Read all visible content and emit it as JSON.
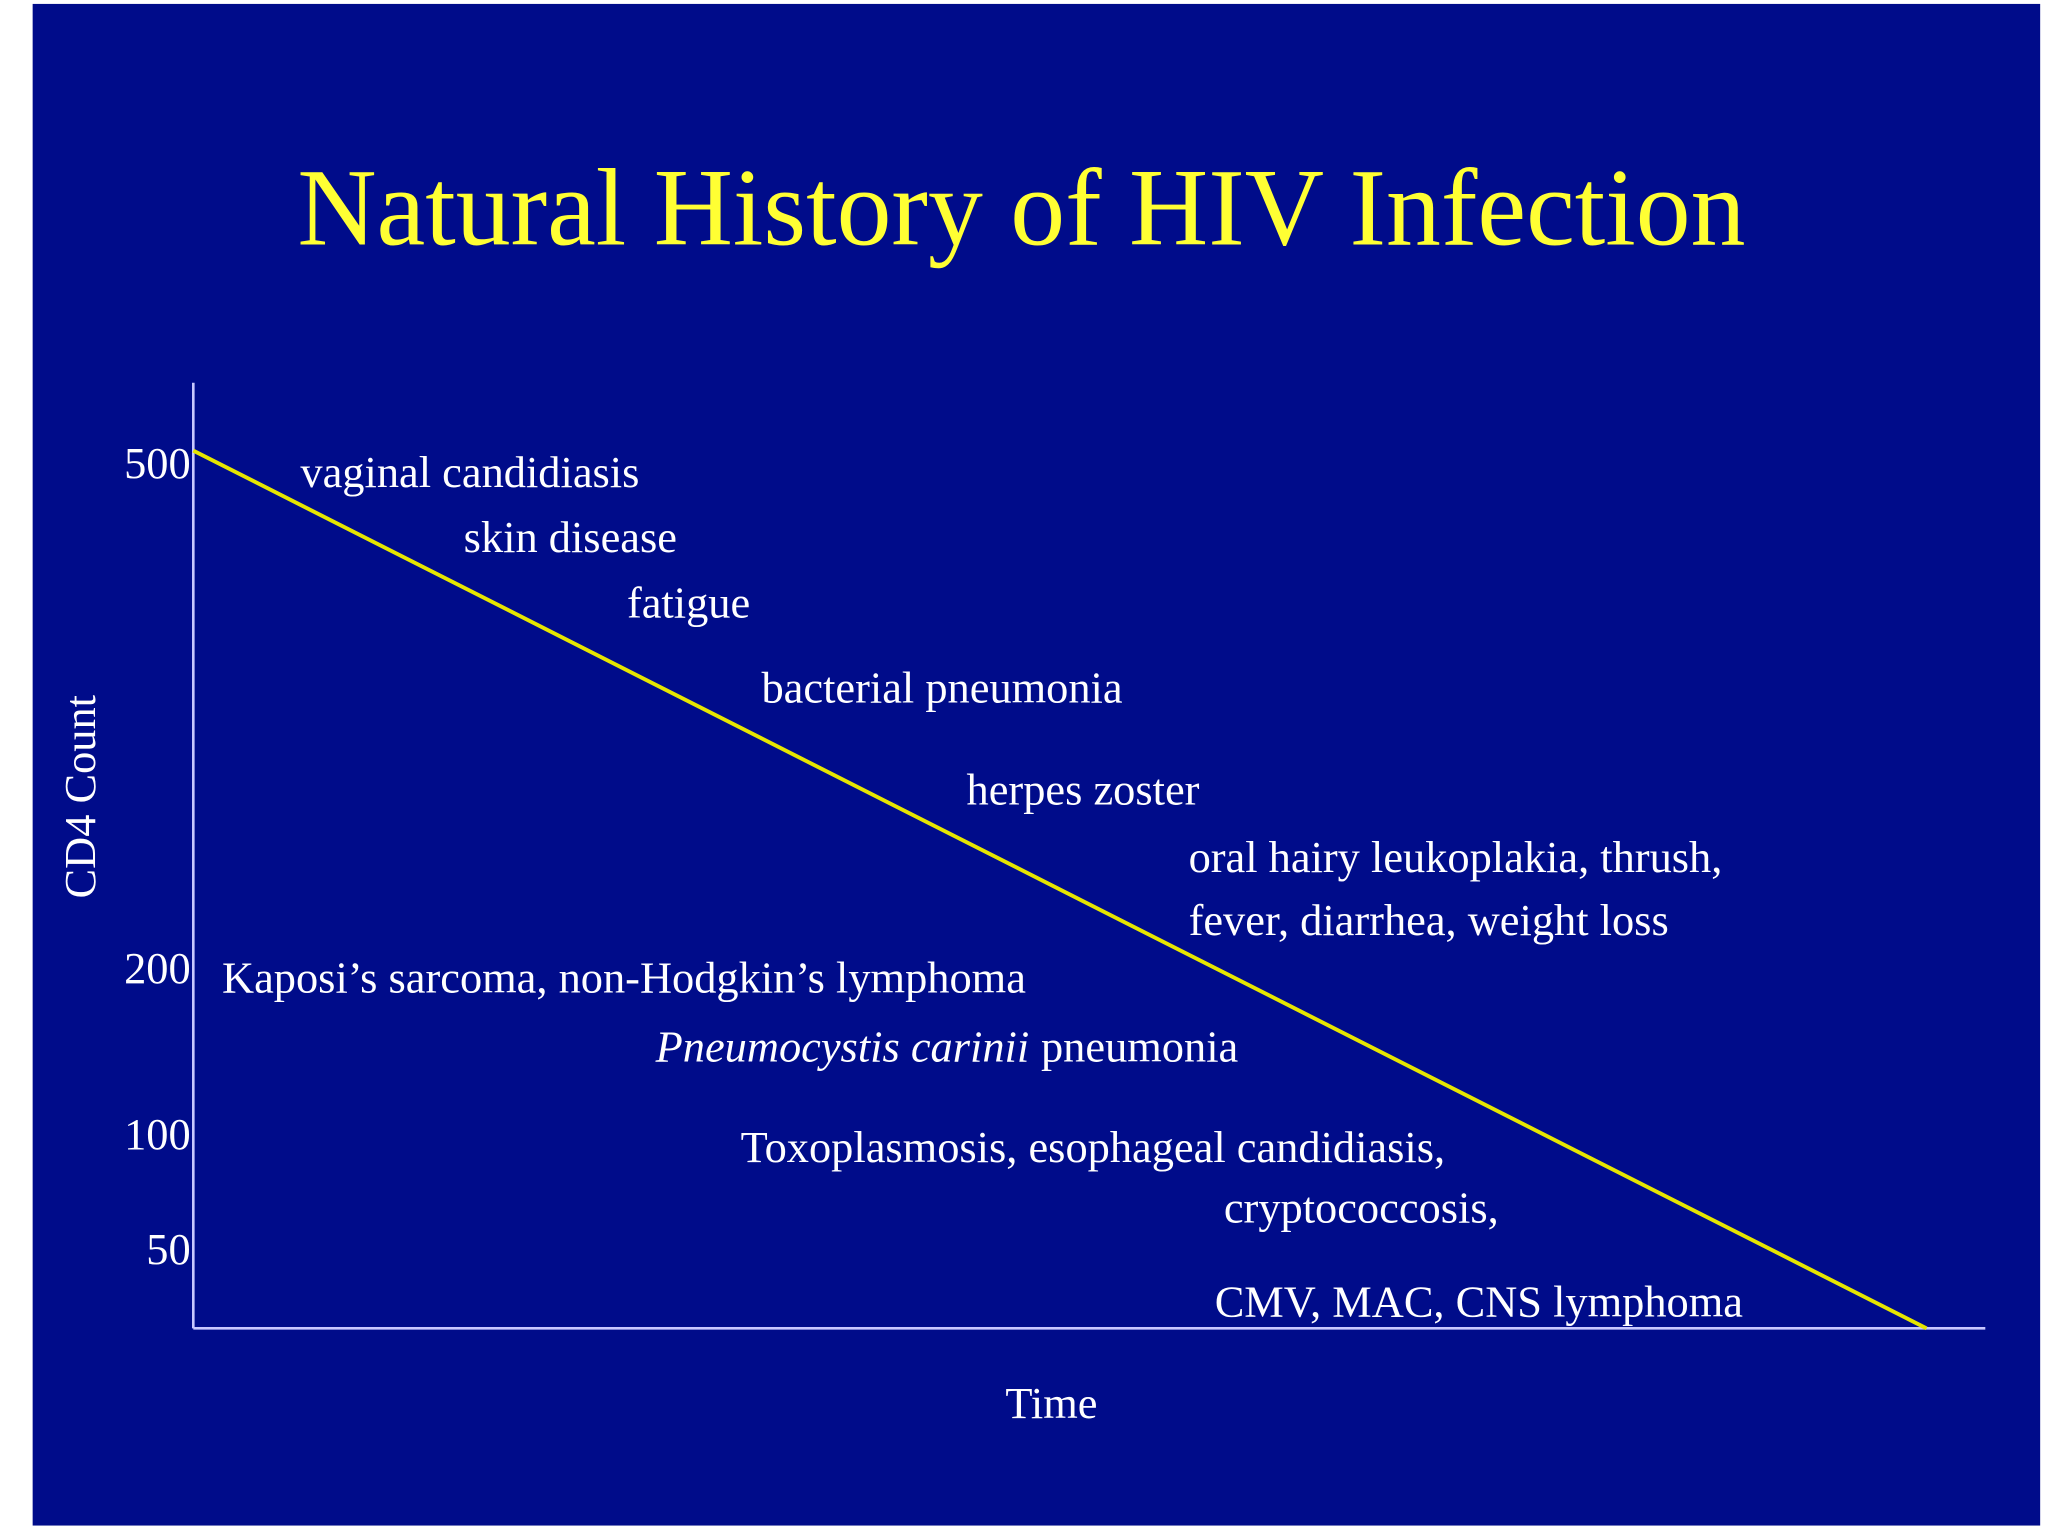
{
  "title": "Natural History of HIV Infection",
  "y_axis": {
    "label": "CD4 Count",
    "ticks": [
      "500",
      "200",
      "100",
      "50"
    ]
  },
  "x_axis": {
    "label": "Time"
  },
  "annotations": [
    {
      "text": "vaginal candidiasis"
    },
    {
      "text": "skin disease"
    },
    {
      "text": "fatigue"
    },
    {
      "text": "bacterial pneumonia"
    },
    {
      "text": "herpes zoster"
    },
    {
      "text": "oral hairy leukoplakia, thrush,"
    },
    {
      "text": "fever, diarrhea, weight loss"
    },
    {
      "text": "Kaposi’s sarcoma, non-Hodgkin’s lymphoma"
    },
    {
      "italic": "Pneumocystis carinii",
      "text": "pneumonia"
    },
    {
      "text": "Toxoplasmosis, esophageal candidiasis,"
    },
    {
      "text": "cryptococcosis,"
    },
    {
      "text": "CMV, MAC, CNS lymphoma"
    }
  ]
}
